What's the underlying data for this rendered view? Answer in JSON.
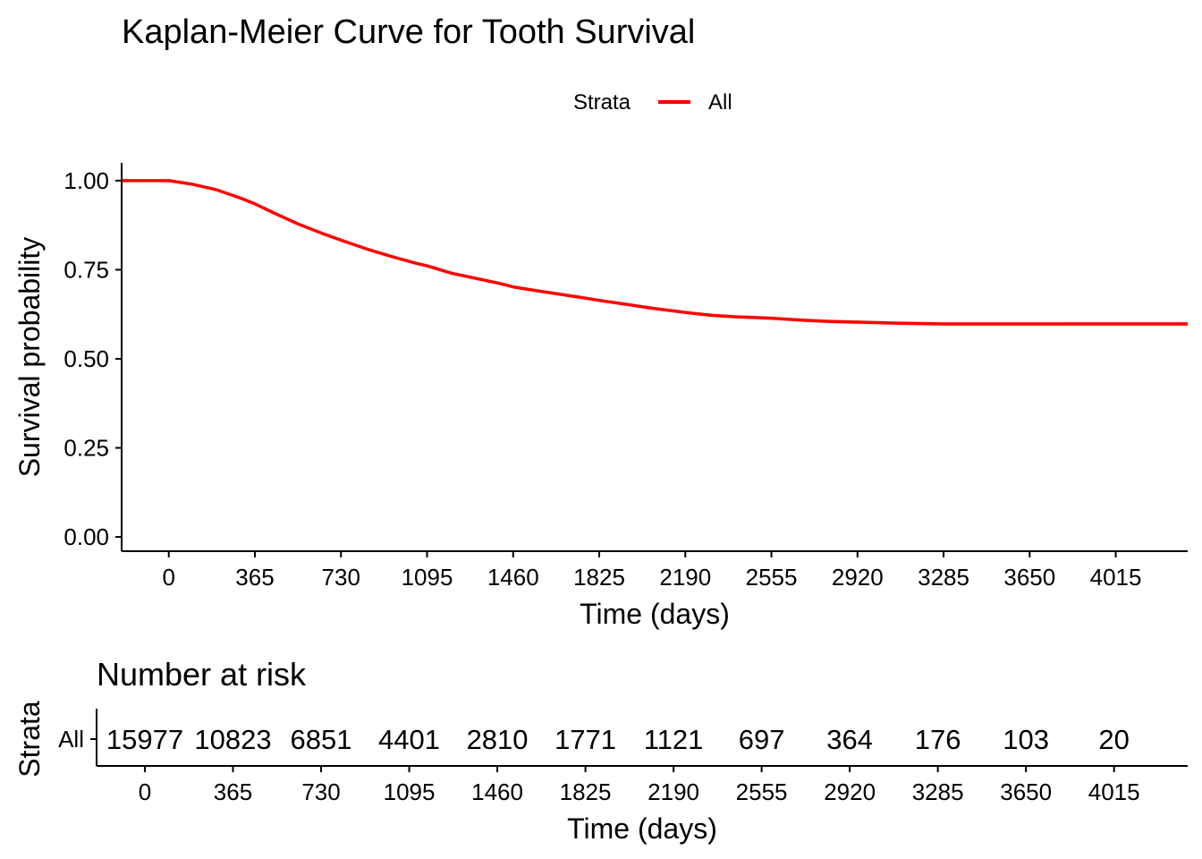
{
  "chart_data": {
    "type": "line",
    "title": "Kaplan-Meier Curve for Tooth Survival",
    "legend": {
      "title": "Strata",
      "entries": [
        "All"
      ],
      "placement": "top"
    },
    "xlabel": "Time (days)",
    "ylabel": "Survival probability",
    "xlim": [
      -200,
      4320
    ],
    "ylim": [
      -0.04,
      1.05
    ],
    "x_ticks": [
      0,
      365,
      730,
      1095,
      1460,
      1825,
      2190,
      2555,
      2920,
      3285,
      3650,
      4015
    ],
    "y_ticks": [
      "0.00",
      "0.25",
      "0.50",
      "0.75",
      "1.00"
    ],
    "grid": false,
    "series": [
      {
        "name": "All",
        "color": "#ff0000",
        "x": [
          -200,
          0,
          100,
          200,
          300,
          365,
          450,
          550,
          650,
          730,
          850,
          950,
          1050,
          1095,
          1200,
          1300,
          1400,
          1460,
          1550,
          1650,
          1750,
          1825,
          1950,
          2050,
          2190,
          2300,
          2400,
          2555,
          2700,
          2800,
          2920,
          3100,
          3285,
          3500,
          3650,
          3800,
          4015,
          4200,
          4320
        ],
        "y": [
          1.0,
          1.0,
          0.99,
          0.975,
          0.952,
          0.935,
          0.908,
          0.878,
          0.852,
          0.833,
          0.806,
          0.786,
          0.768,
          0.761,
          0.74,
          0.726,
          0.712,
          0.702,
          0.692,
          0.682,
          0.672,
          0.664,
          0.652,
          0.642,
          0.63,
          0.622,
          0.618,
          0.614,
          0.608,
          0.605,
          0.603,
          0.6,
          0.598,
          0.598,
          0.598,
          0.598,
          0.598,
          0.598,
          0.598
        ]
      }
    ],
    "risk_table": {
      "title": "Number at risk",
      "ylabel": "Strata",
      "xlabel": "Time (days)",
      "row_label": "All",
      "row_label_color": "#ff0000",
      "x_ticks": [
        0,
        365,
        730,
        1095,
        1460,
        1825,
        2190,
        2555,
        2920,
        3285,
        3650,
        4015
      ],
      "counts": [
        "15977",
        "10823",
        "6851",
        "4401",
        "2810",
        "1771",
        "1121",
        "697",
        "364",
        "176",
        "103",
        "20"
      ]
    }
  }
}
